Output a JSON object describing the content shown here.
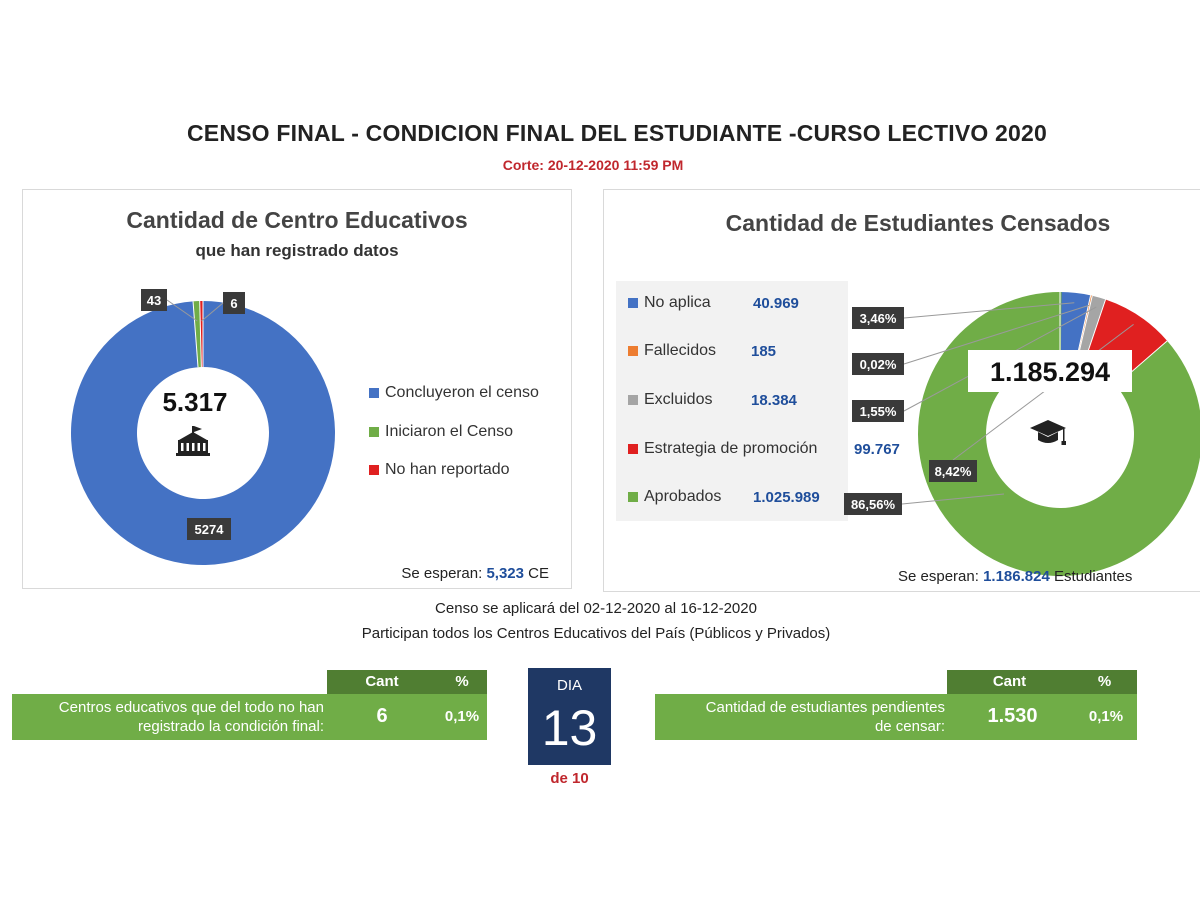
{
  "header": {
    "title": "CENSO FINAL - CONDICION FINAL DEL ESTUDIANTE -CURSO LECTIVO 2020",
    "corte": "Corte: 20-12-2020 11:59 PM"
  },
  "left_panel": {
    "title": "Cantidad de Centro Educativos",
    "subtitle": "que han registrado datos",
    "center_value": "5.317",
    "center_icon": "school-building-icon",
    "expect_label": "Se esperan:",
    "expect_value": "5,323",
    "expect_unit": "CE"
  },
  "right_panel": {
    "title": "Cantidad de Estudiantes Censados",
    "center_value": "1.185.294",
    "center_icon": "graduation-cap-icon",
    "expect_label": "Se esperan:",
    "expect_value": "1.186.824",
    "expect_unit": "Estudiantes",
    "table": [
      {
        "label": "No aplica",
        "value": "40.969",
        "color": "#4472c4"
      },
      {
        "label": "Fallecidos",
        "value": "185",
        "color": "#ed7d31"
      },
      {
        "label": "Excluidos",
        "value": "18.384",
        "color": "#a5a5a5"
      },
      {
        "label": "Estrategia de promoción",
        "value": "99.767",
        "color": "#e02020"
      },
      {
        "label": "Aprobados",
        "value": "1.025.989",
        "color": "#70ad47"
      }
    ]
  },
  "chart_data": [
    {
      "type": "pie",
      "donut": true,
      "title": "Cantidad de Centro Educativos",
      "subtitle": "que han registrado datos",
      "categories": [
        "Concluyeron el censo",
        "Iniciaron el Censo",
        "No han reportado"
      ],
      "values": [
        5274,
        43,
        6
      ],
      "data_labels": [
        "5274",
        "43",
        "6"
      ],
      "colors": [
        "#4472c4",
        "#70ad47",
        "#e02020"
      ],
      "legend": "right",
      "center_label": "5.317"
    },
    {
      "type": "pie",
      "donut": true,
      "title": "Cantidad de Estudiantes Censados",
      "categories": [
        "No aplica",
        "Fallecidos",
        "Excluidos",
        "Estrategia de promoción",
        "Aprobados"
      ],
      "values": [
        40969,
        185,
        18384,
        99767,
        1025989
      ],
      "data_labels": [
        "3,46%",
        "0,02%",
        "1,55%",
        "8,42%",
        "86,56%"
      ],
      "colors": [
        "#4472c4",
        "#ed7d31",
        "#a5a5a5",
        "#e02020",
        "#70ad47"
      ],
      "legend": "left",
      "center_label": "1.185.294"
    }
  ],
  "info": {
    "line1": "Censo se aplicará del 02-12-2020 al 16-12-2020",
    "line2": "Participan todos los Centros Educativos del País (Públicos y Privados)"
  },
  "summary_left": {
    "header_cant": "Cant",
    "header_pct": "%",
    "label_line1": "Centros educativos que del todo no han",
    "label_line2": "registrado la condición final:",
    "cant": "6",
    "pct": "0,1%"
  },
  "dia": {
    "label": "DIA",
    "number": "13",
    "of": "de 10"
  },
  "summary_right": {
    "header_cant": "Cant",
    "header_pct": "%",
    "label_line1": "Cantidad de estudiantes pendientes",
    "label_line2": "de censar:",
    "cant": "1.530",
    "pct": "0,1%"
  }
}
